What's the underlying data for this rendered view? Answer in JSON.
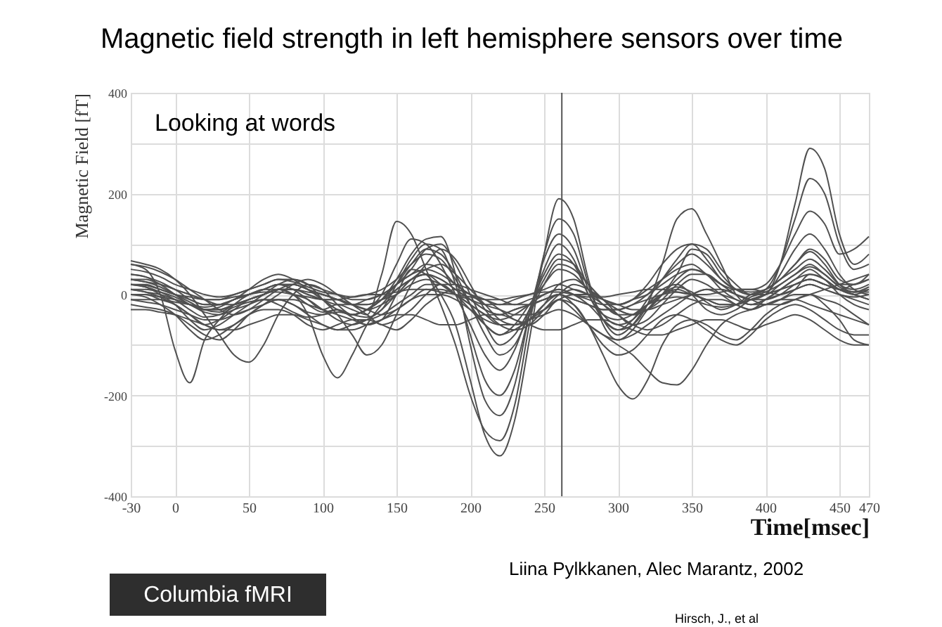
{
  "chart_data": {
    "type": "line",
    "title": "Magnetic field strength in left hemisphere sensors over time",
    "xlabel": "Time[msec]",
    "ylabel": "Magnetic Field [fT]",
    "xlim": [
      -30,
      470
    ],
    "ylim": [
      -400,
      400
    ],
    "xticks": [
      -30,
      0,
      50,
      100,
      150,
      200,
      250,
      300,
      350,
      400,
      450,
      470
    ],
    "yticks": [
      -400,
      {
        "value": -300,
        "label": null
      },
      -200,
      {
        "value": -100,
        "label": null
      },
      0,
      {
        "value": 100,
        "label": null
      },
      200,
      {
        "value": 300,
        "label": null
      },
      400
    ],
    "grid": true,
    "x": [
      -30,
      -20,
      -10,
      0,
      10,
      20,
      30,
      40,
      50,
      60,
      70,
      80,
      90,
      100,
      110,
      120,
      130,
      140,
      150,
      160,
      170,
      180,
      190,
      200,
      210,
      220,
      230,
      240,
      250,
      260,
      270,
      280,
      290,
      300,
      310,
      320,
      330,
      340,
      350,
      360,
      370,
      380,
      390,
      400,
      410,
      420,
      430,
      440,
      450,
      460,
      470
    ],
    "series": [
      {
        "color": "#505050",
        "values": [
          20,
          15,
          5,
          -10,
          -30,
          -45,
          -40,
          -25,
          -15,
          -10,
          -20,
          -35,
          -45,
          -40,
          -30,
          -45,
          -60,
          -50,
          0,
          50,
          40,
          0,
          -60,
          -170,
          -280,
          -320,
          -250,
          -90,
          80,
          190,
          150,
          30,
          -60,
          -90,
          -70,
          -30,
          0,
          15,
          5,
          -15,
          -30,
          -20,
          0,
          10,
          30,
          60,
          85,
          60,
          20,
          5,
          15
        ]
      },
      {
        "color": "#505050",
        "values": [
          40,
          35,
          20,
          0,
          -20,
          -30,
          -25,
          -10,
          0,
          10,
          20,
          10,
          -10,
          -30,
          -20,
          -30,
          -40,
          40,
          145,
          120,
          50,
          -20,
          -100,
          -200,
          -270,
          -290,
          -220,
          -60,
          80,
          150,
          120,
          20,
          -50,
          -80,
          -60,
          -20,
          10,
          20,
          0,
          -30,
          -40,
          -30,
          -10,
          0,
          40,
          90,
          120,
          90,
          40,
          10,
          0
        ]
      },
      {
        "color": "#505050",
        "values": [
          30,
          25,
          15,
          0,
          -15,
          -30,
          -35,
          -20,
          -10,
          0,
          10,
          0,
          -20,
          -35,
          -30,
          -40,
          -30,
          -10,
          30,
          80,
          110,
          115,
          40,
          -100,
          -210,
          -240,
          -180,
          -40,
          70,
          120,
          90,
          10,
          -40,
          -60,
          -50,
          -20,
          0,
          10,
          0,
          -10,
          -20,
          -20,
          -5,
          5,
          20,
          40,
          55,
          40,
          15,
          5,
          10
        ]
      },
      {
        "color": "#505050",
        "values": [
          10,
          10,
          5,
          -5,
          -20,
          -35,
          -40,
          -30,
          -20,
          -10,
          -10,
          -20,
          -35,
          -40,
          -35,
          -40,
          -45,
          -30,
          20,
          70,
          100,
          90,
          20,
          -80,
          -170,
          -200,
          -150,
          -40,
          50,
          100,
          70,
          0,
          -40,
          -50,
          -40,
          -20,
          -10,
          -5,
          -10,
          -20,
          -25,
          -20,
          -10,
          0,
          10,
          20,
          30,
          20,
          10,
          5,
          5
        ]
      },
      {
        "color": "#505050",
        "values": [
          60,
          50,
          0,
          -110,
          -175,
          -90,
          -50,
          -20,
          0,
          10,
          20,
          20,
          10,
          0,
          -10,
          -20,
          -30,
          -20,
          0,
          30,
          40,
          30,
          10,
          -10,
          -30,
          -40,
          -30,
          -20,
          -10,
          0,
          -10,
          -20,
          -30,
          -30,
          -20,
          -10,
          0,
          5,
          0,
          -10,
          -20,
          -20,
          -10,
          0,
          10,
          20,
          30,
          20,
          10,
          0,
          -10
        ]
      },
      {
        "color": "#505050",
        "values": [
          67,
          60,
          50,
          30,
          0,
          -40,
          -80,
          -120,
          -134,
          -100,
          -40,
          0,
          20,
          10,
          -20,
          -40,
          -30,
          -10,
          20,
          40,
          60,
          50,
          20,
          0,
          -20,
          -30,
          -40,
          -40,
          -30,
          -10,
          0,
          0,
          -10,
          -20,
          -30,
          -30,
          -20,
          -10,
          0,
          10,
          10,
          0,
          -10,
          -20,
          -20,
          -10,
          0,
          10,
          20,
          30,
          40
        ]
      },
      {
        "color": "#505050",
        "values": [
          0,
          0,
          -10,
          -20,
          -40,
          -60,
          -50,
          -30,
          -10,
          0,
          10,
          0,
          -40,
          -120,
          -165,
          -120,
          -60,
          -20,
          10,
          30,
          40,
          20,
          0,
          -20,
          -40,
          -60,
          -60,
          -50,
          -30,
          -10,
          -30,
          -60,
          -80,
          -90,
          -80,
          -60,
          -40,
          -20,
          0,
          10,
          0,
          -10,
          -20,
          -10,
          0,
          10,
          20,
          10,
          0,
          -10,
          -20
        ]
      },
      {
        "color": "#505050",
        "values": [
          20,
          15,
          0,
          -20,
          -50,
          -70,
          -60,
          -40,
          -20,
          0,
          20,
          30,
          20,
          -10,
          -40,
          -80,
          -120,
          -100,
          -40,
          20,
          60,
          90,
          70,
          20,
          -30,
          -60,
          -70,
          -60,
          -30,
          0,
          20,
          10,
          -10,
          -40,
          -60,
          -50,
          -20,
          10,
          30,
          20,
          0,
          -20,
          -30,
          -10,
          10,
          30,
          50,
          30,
          10,
          0,
          -10
        ]
      },
      {
        "color": "#505050",
        "values": [
          -20,
          -25,
          -30,
          -40,
          -60,
          -80,
          -90,
          -70,
          -40,
          -20,
          -10,
          -20,
          -40,
          -60,
          -70,
          -60,
          -50,
          -60,
          -70,
          -50,
          -20,
          0,
          10,
          0,
          -10,
          -30,
          -50,
          -60,
          -40,
          -10,
          -20,
          -60,
          -120,
          -180,
          -207,
          -170,
          -100,
          -60,
          -50,
          -60,
          -80,
          -90,
          -70,
          -40,
          -20,
          -10,
          0,
          -20,
          -50,
          -90,
          -100
        ]
      },
      {
        "color": "#505050",
        "values": [
          10,
          5,
          0,
          -10,
          -20,
          -30,
          -30,
          -20,
          -10,
          0,
          10,
          10,
          0,
          -10,
          -10,
          -20,
          -30,
          -40,
          -30,
          -10,
          10,
          10,
          0,
          -20,
          -40,
          -50,
          -40,
          -20,
          0,
          10,
          0,
          -20,
          -50,
          -70,
          -60,
          -20,
          60,
          150,
          170,
          120,
          60,
          0,
          -20,
          -10,
          10,
          30,
          40,
          30,
          10,
          0,
          10
        ]
      },
      {
        "color": "#505050",
        "values": [
          -10,
          -15,
          -20,
          -30,
          -40,
          -50,
          -50,
          -40,
          -30,
          -20,
          -10,
          -10,
          -20,
          -30,
          -40,
          -50,
          -60,
          -50,
          -30,
          -10,
          0,
          0,
          -10,
          -30,
          -50,
          -60,
          -60,
          -50,
          -40,
          -30,
          -40,
          -60,
          -80,
          -100,
          -120,
          -150,
          -175,
          -179,
          -150,
          -100,
          -60,
          -40,
          -30,
          -20,
          -10,
          -10,
          -20,
          -30,
          -40,
          -50,
          -60
        ]
      },
      {
        "color": "#505050",
        "values": [
          30,
          25,
          20,
          10,
          0,
          -10,
          -20,
          -20,
          -10,
          0,
          10,
          10,
          0,
          -10,
          -20,
          -20,
          -10,
          0,
          20,
          40,
          50,
          40,
          20,
          0,
          -10,
          -20,
          -20,
          -10,
          0,
          10,
          0,
          -10,
          -20,
          -20,
          -10,
          0,
          20,
          40,
          50,
          40,
          20,
          0,
          -10,
          0,
          60,
          180,
          290,
          250,
          120,
          60,
          80
        ]
      },
      {
        "color": "#505050",
        "values": [
          20,
          20,
          10,
          0,
          -10,
          -20,
          -20,
          -10,
          0,
          10,
          20,
          20,
          10,
          0,
          -10,
          -20,
          -20,
          -10,
          10,
          30,
          40,
          30,
          10,
          -10,
          -30,
          -40,
          -30,
          -20,
          -10,
          0,
          -10,
          -20,
          -30,
          -30,
          -20,
          0,
          30,
          60,
          80,
          60,
          30,
          10,
          0,
          10,
          60,
          150,
          230,
          200,
          100,
          50,
          60
        ]
      },
      {
        "color": "#505050",
        "values": [
          0,
          0,
          -5,
          -10,
          -20,
          -30,
          -30,
          -20,
          -10,
          0,
          10,
          10,
          5,
          0,
          -10,
          -20,
          -20,
          -10,
          0,
          20,
          30,
          20,
          0,
          -10,
          -20,
          -20,
          -10,
          0,
          10,
          20,
          10,
          0,
          -10,
          -20,
          -10,
          10,
          30,
          50,
          60,
          40,
          20,
          10,
          10,
          20,
          60,
          120,
          165,
          140,
          80,
          90,
          115
        ]
      },
      {
        "color": "#505050",
        "values": [
          20,
          18,
          10,
          0,
          -5,
          -10,
          -10,
          -5,
          0,
          5,
          5,
          0,
          -5,
          -10,
          -10,
          -5,
          0,
          0,
          5,
          10,
          10,
          5,
          0,
          -5,
          -10,
          -10,
          -5,
          0,
          5,
          5,
          0,
          -5,
          -5,
          0,
          5,
          10,
          10,
          5,
          0,
          0,
          5,
          10,
          10,
          5,
          0,
          10,
          20,
          10,
          0,
          -5,
          0
        ]
      },
      {
        "color": "#505050",
        "values": [
          -30,
          -30,
          -35,
          -40,
          -50,
          -60,
          -70,
          -70,
          -60,
          -50,
          -40,
          -40,
          -50,
          -60,
          -70,
          -70,
          -60,
          -50,
          -40,
          -40,
          -50,
          -60,
          -60,
          -50,
          -40,
          -40,
          -50,
          -60,
          -70,
          -70,
          -60,
          -50,
          -50,
          -60,
          -70,
          -80,
          -80,
          -70,
          -60,
          -50,
          -50,
          -60,
          -70,
          -60,
          -50,
          -40,
          -50,
          -70,
          -90,
          -100,
          -100
        ]
      },
      {
        "color": "#505050",
        "values": [
          40,
          35,
          25,
          10,
          0,
          -10,
          -10,
          0,
          10,
          20,
          30,
          30,
          20,
          10,
          0,
          -10,
          -10,
          0,
          20,
          50,
          90,
          100,
          60,
          0,
          -60,
          -100,
          -80,
          -30,
          30,
          70,
          60,
          20,
          -10,
          -30,
          -40,
          -30,
          0,
          40,
          90,
          80,
          40,
          10,
          0,
          10,
          30,
          50,
          70,
          50,
          20,
          10,
          20
        ]
      },
      {
        "color": "#505050",
        "values": [
          50,
          45,
          35,
          20,
          10,
          0,
          -5,
          0,
          10,
          20,
          30,
          25,
          15,
          5,
          0,
          -5,
          0,
          10,
          30,
          60,
          80,
          70,
          30,
          -20,
          -60,
          -80,
          -60,
          -20,
          20,
          50,
          40,
          10,
          -10,
          -20,
          -10,
          20,
          60,
          90,
          100,
          70,
          30,
          10,
          5,
          10,
          30,
          60,
          90,
          70,
          30,
          20,
          30
        ]
      },
      {
        "color": "#505050",
        "values": [
          0,
          -5,
          -20,
          -40,
          -70,
          -90,
          -80,
          -60,
          -40,
          -30,
          -30,
          -40,
          -60,
          -70,
          -60,
          -50,
          -50,
          -40,
          -20,
          0,
          20,
          20,
          0,
          -30,
          -60,
          -80,
          -70,
          -50,
          -20,
          0,
          -20,
          -60,
          -100,
          -120,
          -110,
          -80,
          -50,
          -40,
          -50,
          -70,
          -90,
          -100,
          -80,
          -50,
          -30,
          -20,
          -30,
          -50,
          -70,
          -80,
          -80
        ]
      },
      {
        "color": "#505050",
        "values": [
          30,
          30,
          20,
          10,
          -10,
          -20,
          -20,
          -10,
          10,
          30,
          40,
          30,
          10,
          -10,
          -30,
          -40,
          -30,
          0,
          60,
          110,
          100,
          60,
          0,
          -60,
          -120,
          -150,
          -110,
          -30,
          40,
          80,
          60,
          0,
          -50,
          -70,
          -50,
          -10,
          30,
          70,
          100,
          90,
          50,
          20,
          0,
          0,
          20,
          40,
          60,
          40,
          20,
          20,
          40
        ]
      },
      {
        "color": "#505050",
        "values": [
          10,
          5,
          -5,
          -20,
          -40,
          -60,
          -70,
          -60,
          -40,
          -20,
          0,
          20,
          30,
          20,
          0,
          -20,
          -40,
          -60,
          -50,
          -30,
          0,
          20,
          20,
          10,
          0,
          -10,
          -20,
          -20,
          -10,
          0,
          10,
          0,
          -20,
          -40,
          -60,
          -70,
          -60,
          -40,
          -20,
          -10,
          -10,
          -20,
          -30,
          -20,
          -10,
          0,
          0,
          -10,
          -20,
          -40,
          -60
        ]
      },
      {
        "color": "#505050",
        "values": [
          -10,
          -10,
          -10,
          -15,
          -20,
          -25,
          -20,
          -10,
          0,
          10,
          10,
          0,
          -10,
          -30,
          -50,
          -60,
          -50,
          -30,
          0,
          30,
          50,
          60,
          40,
          10,
          -20,
          -50,
          -60,
          -50,
          -20,
          20,
          30,
          10,
          -20,
          -40,
          -40,
          -20,
          0,
          30,
          50,
          40,
          10,
          -10,
          -20,
          -20,
          -10,
          10,
          40,
          30,
          0,
          -20,
          -30
        ]
      },
      {
        "color": "#505050",
        "values": [
          60,
          55,
          45,
          30,
          10,
          -10,
          -30,
          -40,
          -30,
          -10,
          10,
          20,
          10,
          -10,
          -30,
          -40,
          -30,
          -10,
          20,
          60,
          90,
          80,
          40,
          -20,
          -80,
          -120,
          -100,
          -40,
          20,
          60,
          50,
          20,
          -10,
          -30,
          -40,
          -30,
          -10,
          20,
          40,
          40,
          20,
          0,
          -10,
          -10,
          0,
          20,
          30,
          20,
          10,
          20,
          30
        ]
      }
    ],
    "ref_lines": [
      {
        "axis": "x",
        "value": 262,
        "color": "#555555"
      }
    ],
    "annotations": [
      "Looking at words",
      "Liina Pylkkanen, Alec Marantz, 2002",
      "Columbia fMRI",
      "Hirsch, J., et al"
    ]
  }
}
